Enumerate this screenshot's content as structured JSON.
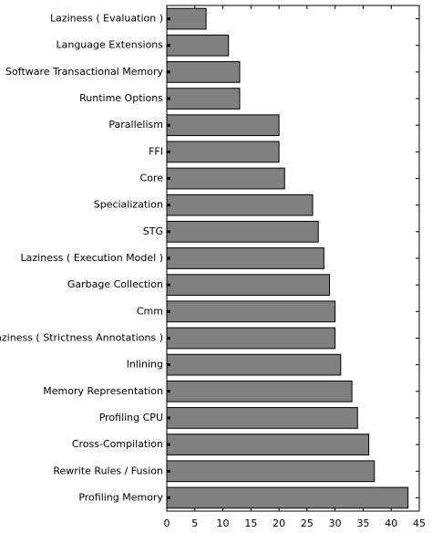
{
  "chart_data": {
    "type": "bar",
    "orientation": "horizontal",
    "categories": [
      "Laziness ( Evaluation )",
      "Language Extensions",
      "Software Transactional Memory",
      "Runtime Options",
      "Parallelism",
      "FFI",
      "Core",
      "Specialization",
      "STG",
      "Laziness ( Execution Model )",
      "Garbage Collection",
      "Cmm",
      "Laziness ( Strictness Annotations )",
      "Inlining",
      "Memory Representation",
      "Profiling CPU",
      "Cross-Compilation",
      "Rewrite Rules / Fusion",
      "Profiling Memory"
    ],
    "values": [
      7,
      11,
      13,
      13,
      20,
      20,
      21,
      26,
      27,
      28,
      29,
      30,
      30,
      31,
      33,
      34,
      36,
      37,
      43
    ],
    "xlim": [
      0,
      45
    ],
    "xticks": [
      0,
      5,
      10,
      15,
      20,
      25,
      30,
      35,
      40,
      45
    ],
    "title": "",
    "xlabel": "",
    "ylabel": "",
    "grid": false,
    "bar_color": "#808080",
    "bar_edge_color": "#000000"
  }
}
